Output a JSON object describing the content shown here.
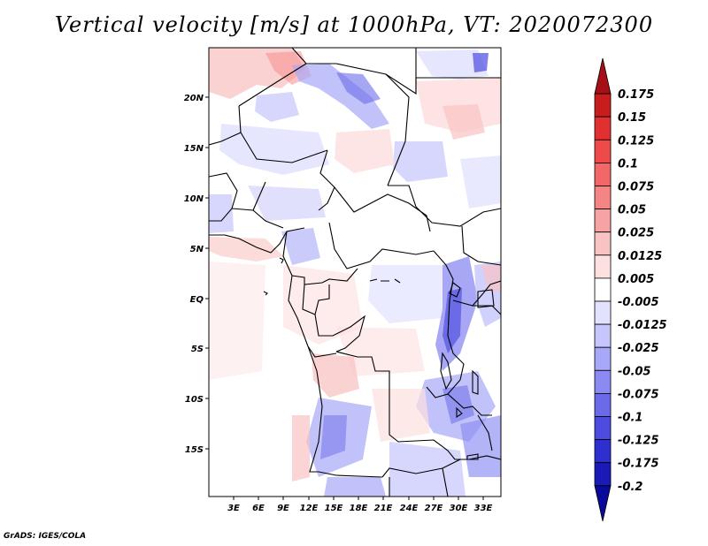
{
  "title": "Vertical velocity [m/s] at 1000hPa, VT: 2020072300",
  "credit": "GrADS: IGES/COLA",
  "map": {
    "lat_ticks": [
      "20N",
      "15N",
      "10N",
      "5N",
      "EQ",
      "5S",
      "10S",
      "15S"
    ],
    "lon_ticks": [
      "3E",
      "6E",
      "9E",
      "12E",
      "15E",
      "18E",
      "21E",
      "24E",
      "27E",
      "30E",
      "33E"
    ]
  },
  "colorbar": {
    "levels": [
      "0.175",
      "0.15",
      "0.125",
      "0.1",
      "0.075",
      "0.05",
      "0.025",
      "0.0125",
      "0.005",
      "-0.005",
      "-0.0125",
      "-0.025",
      "-0.05",
      "-0.075",
      "-0.1",
      "-0.125",
      "-0.175",
      "-0.2"
    ],
    "colors": [
      "#a50f15",
      "#c81d1d",
      "#e03030",
      "#ef4a4a",
      "#f26868",
      "#f58585",
      "#f8a3a3",
      "#fac3c3",
      "#fde0e0",
      "#ffffff",
      "#e2e2ff",
      "#c6c6fc",
      "#a8a8f8",
      "#8a8af2",
      "#6b6bea",
      "#4c4ce0",
      "#2f2fcf",
      "#1a1ab8",
      "#0a0a9a"
    ]
  }
}
